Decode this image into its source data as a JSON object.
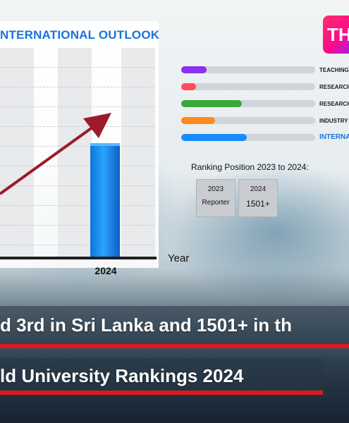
{
  "chart": {
    "title": "NTERNATIONAL OUTLOOK",
    "x_label": "2024",
    "axis_title": "Year"
  },
  "chart_data": {
    "type": "bar",
    "categories": [
      "2024"
    ],
    "values": [
      1
    ],
    "title": "NTERNATIONAL OUTLOOK",
    "xlabel": "Year",
    "ylabel": ""
  },
  "brand": {
    "logo_text": "TH"
  },
  "metrics": [
    {
      "label": "TEACHING",
      "fill": 0.19,
      "color": "#8b2ff0"
    },
    {
      "label": "RESEARCH",
      "fill": 0.11,
      "color": "#ff4d5a"
    },
    {
      "label": "RESEARCH",
      "fill": 0.45,
      "color": "#3aa83a"
    },
    {
      "label": "INDUSTRY",
      "fill": 0.25,
      "color": "#ff8a1a"
    },
    {
      "label": "INTERNA",
      "fill": 0.49,
      "color": "#1a8cff"
    }
  ],
  "ranking": {
    "title": "Ranking Position 2023 to 2024:",
    "box_2023_year": "2023",
    "box_2023_value": "Reporter",
    "box_2024_year": "2024",
    "box_2024_value": "1501+"
  },
  "headline": {
    "line1": "d 3rd in Sri Lanka and 1501+ in th",
    "line2": "ld University Rankings 2024"
  },
  "colors": {
    "accent": "#1a73d9",
    "banner_underline": "#e0181e",
    "arrow": "#9b1b2a"
  }
}
